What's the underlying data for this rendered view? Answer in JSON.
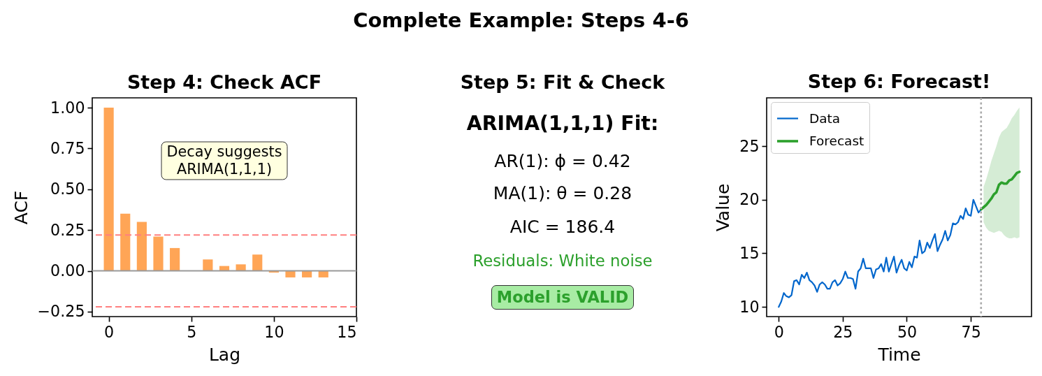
{
  "chart_data": [
    {
      "type": "other",
      "title": "Complete Example: Steps 4-6"
    },
    {
      "type": "bar",
      "title": "Step 4: Check ACF",
      "xlabel": "Lag",
      "ylabel": "ACF",
      "x": [
        0,
        1,
        2,
        3,
        4,
        5,
        6,
        7,
        8,
        9,
        10,
        11,
        12,
        13
      ],
      "values": [
        1.0,
        0.35,
        0.3,
        0.21,
        0.14,
        0.0,
        0.07,
        0.03,
        0.04,
        0.1,
        -0.01,
        -0.04,
        -0.04,
        -0.04
      ],
      "color": "#ffa556",
      "xlim": [
        -1,
        15
      ],
      "xticks": [
        0,
        5,
        10,
        15
      ],
      "ylim": [
        -0.28,
        1.06
      ],
      "yticks": [
        {
          "value": -0.25,
          "label": "−0.25"
        },
        {
          "value": 0,
          "label": "0.00"
        },
        0.25,
        {
          "value": 0.5,
          "label": "0.50"
        },
        0.75,
        {
          "value": 1,
          "label": "1.00"
        }
      ],
      "ref_lines": [
        {
          "axis": "y",
          "value": 0,
          "color": "#999999",
          "line_style": "solid"
        },
        {
          "axis": "y",
          "value": 0.22,
          "color": "#ff7f7f",
          "line_style": "dashed"
        },
        {
          "axis": "y",
          "value": -0.22,
          "color": "#ff7f7f",
          "line_style": "dashed"
        }
      ],
      "annotations": [
        "Decay suggests\nARIMA(1,1,1)"
      ]
    },
    {
      "type": "other",
      "title": "Step 5: Fit & Check",
      "annotations": [
        "ARIMA(1,1,1) Fit:",
        "AR(1): ϕ = 0.42",
        "MA(1): θ = 0.28",
        "AIC = 186.4",
        "Residuals: White noise",
        "Model is VALID"
      ]
    },
    {
      "type": "line",
      "title": "Step 6: Forecast!",
      "xlabel": "Time",
      "ylabel": "Value",
      "xlim": [
        -4.7,
        98.7
      ],
      "xticks": [
        0,
        25,
        50,
        75
      ],
      "ylim": [
        9.1,
        29.5
      ],
      "yticks": [
        10,
        15,
        20,
        25
      ],
      "legend": "top left",
      "series": [
        {
          "name": "Data",
          "color": "#0066cc",
          "x": [
            0,
            1,
            2,
            3,
            4,
            5,
            6,
            7,
            8,
            9,
            10,
            11,
            12,
            13,
            14,
            15,
            16,
            17,
            18,
            19,
            20,
            21,
            22,
            23,
            24,
            25,
            26,
            27,
            28,
            29,
            30,
            31,
            32,
            33,
            34,
            35,
            36,
            37,
            38,
            39,
            40,
            41,
            42,
            43,
            44,
            45,
            46,
            47,
            48,
            49,
            50,
            51,
            52,
            53,
            54,
            55,
            56,
            57,
            58,
            59,
            60,
            61,
            62,
            63,
            64,
            65,
            66,
            67,
            68,
            69,
            70,
            71,
            72,
            73,
            74,
            75,
            76,
            77,
            78,
            79
          ],
          "values": [
            10.0,
            10.5,
            11.3,
            11.0,
            10.9,
            11.1,
            12.4,
            12.5,
            12.1,
            13.0,
            12.7,
            13.2,
            12.5,
            12.3,
            12.0,
            11.4,
            12.1,
            12.3,
            12.1,
            11.7,
            11.7,
            12.3,
            12.5,
            12.0,
            12.2,
            12.6,
            13.3,
            12.7,
            12.7,
            12.6,
            11.7,
            13.3,
            13.6,
            14.5,
            13.6,
            13.6,
            13.6,
            12.7,
            13.5,
            13.6,
            14.0,
            13.3,
            14.6,
            13.3,
            14.0,
            14.7,
            13.2,
            13.9,
            14.4,
            13.6,
            13.4,
            14.2,
            13.7,
            14.7,
            14.6,
            16.2,
            15.0,
            15.2,
            16.0,
            15.5,
            16.2,
            16.8,
            15.2,
            15.8,
            16.3,
            17.1,
            16.2,
            16.7,
            17.8,
            17.7,
            17.9,
            18.5,
            18.2,
            19.2,
            18.6,
            18.5,
            20.0,
            19.4,
            18.8,
            19.1
          ]
        },
        {
          "name": "Forecast",
          "color": "#2ca02c",
          "x": [
            79,
            80,
            81,
            82,
            83,
            84,
            85,
            86,
            87,
            88,
            89,
            90,
            91,
            92,
            93,
            94
          ],
          "values": [
            19.1,
            19.3,
            19.5,
            19.8,
            20.1,
            20.5,
            20.7,
            21.4,
            21.6,
            21.5,
            21.5,
            21.8,
            21.9,
            22.2,
            22.5,
            22.6
          ],
          "lower": [
            null,
            17.9,
            17.4,
            17.1,
            17.0,
            16.9,
            17.0,
            17.1,
            17.0,
            16.7,
            16.5,
            16.4,
            16.4,
            16.5,
            16.4,
            16.5
          ],
          "upper": [
            null,
            21.2,
            21.9,
            22.7,
            23.6,
            24.3,
            25.0,
            25.8,
            26.3,
            26.5,
            26.7,
            27.1,
            27.6,
            27.9,
            28.3,
            28.6
          ]
        }
      ],
      "ref_lines": [
        {
          "axis": "x",
          "value": 79,
          "color": "#aaaaaa",
          "line_style": "dotted"
        }
      ]
    }
  ]
}
